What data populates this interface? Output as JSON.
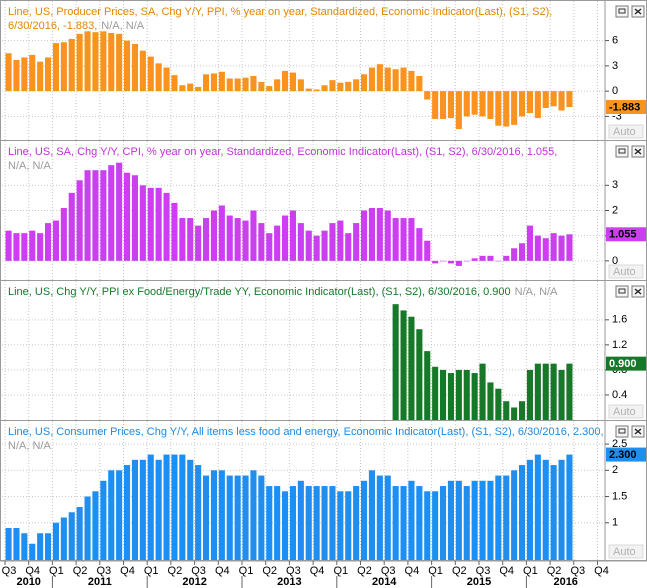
{
  "chart_data": [
    {
      "type": "bar",
      "color": "#f7931e",
      "title_color": "#e08600",
      "grid": true,
      "title": [
        "Line, US, Producer Prices, SA, Chg Y/Y, PPI, % year on year, Standardized, Economic Indicator(Last), (S1, S2),",
        "6/30/2016, -1.883,"
      ],
      "status": "N/A, N/A",
      "auto": "Auto",
      "ylim": [
        -5.8,
        10.7
      ],
      "yticks": [
        6,
        3,
        0,
        -3
      ],
      "values": [
        4.5,
        3.7,
        4.0,
        4.3,
        3.5,
        4.0,
        5.7,
        5.8,
        6.2,
        6.8,
        7.1,
        7.0,
        7.1,
        6.9,
        6.8,
        6.0,
        5.6,
        4.8,
        4.1,
        3.3,
        2.8,
        1.9,
        0.7,
        0.9,
        0.5,
        2.0,
        2.1,
        2.3,
        1.5,
        1.5,
        1.6,
        1.8,
        1.1,
        0.6,
        1.4,
        2.4,
        2.2,
        1.4,
        0.3,
        0.2,
        0.7,
        1.3,
        1.0,
        1.1,
        1.4,
        2.0,
        2.8,
        3.2,
        2.8,
        2.6,
        2.8,
        2.4,
        1.8,
        -1.0,
        -3.3,
        -3.3,
        -3.2,
        -4.5,
        -3.0,
        -2.8,
        -3.0,
        -3.3,
        -4.1,
        -4.2,
        -4.0,
        -3.0,
        -2.6,
        -3.2,
        -2.0,
        -1.8,
        -2.3,
        -1.883
      ]
    },
    {
      "type": "bar",
      "color": "#cc3ff0",
      "title_color": "#c030d8",
      "grid": true,
      "title": [
        "Line, US, SA, Chg Y/Y, CPI, % year on year, Standardized, Economic Indicator(Last), (S1, S2), 6/30/2016, 1.055,"
      ],
      "status": "N/A, N/A",
      "auto": "Auto",
      "ylim": [
        -0.76,
        4.76
      ],
      "yticks": [
        3,
        2,
        1,
        0
      ],
      "values": [
        1.2,
        1.1,
        1.1,
        1.2,
        1.1,
        1.5,
        1.6,
        2.1,
        2.7,
        3.2,
        3.6,
        3.6,
        3.6,
        3.8,
        3.9,
        3.5,
        3.4,
        3.0,
        2.9,
        2.9,
        2.7,
        2.3,
        1.7,
        1.7,
        1.4,
        1.7,
        2.0,
        2.2,
        1.8,
        1.7,
        1.6,
        2.0,
        1.5,
        1.1,
        1.4,
        1.8,
        2.0,
        1.5,
        1.2,
        1.0,
        1.2,
        1.5,
        1.6,
        1.1,
        1.5,
        2.0,
        2.1,
        2.1,
        2.0,
        1.7,
        1.7,
        1.7,
        1.3,
        0.8,
        -0.1,
        0.0,
        -0.1,
        -0.2,
        0.0,
        0.1,
        0.2,
        0.2,
        0.0,
        0.2,
        0.5,
        0.7,
        1.4,
        1.0,
        0.9,
        1.1,
        1.0,
        1.055
      ]
    },
    {
      "type": "bar",
      "color": "#17782a",
      "title_color": "#17782a",
      "grid": true,
      "title": [
        "Line, US, Chg Y/Y, PPI ex Food/Energy/Trade YY, Economic Indicator(Last), (S1, S2), 6/30/2016, 0.900"
      ],
      "status": "N/A, N/A",
      "auto": "Auto",
      "ylim": [
        0,
        2.22
      ],
      "yticks": [
        1.6,
        1.2,
        0.8,
        0.4
      ],
      "values": [
        null,
        null,
        null,
        null,
        null,
        null,
        null,
        null,
        null,
        null,
        null,
        null,
        null,
        null,
        null,
        null,
        null,
        null,
        null,
        null,
        null,
        null,
        null,
        null,
        null,
        null,
        null,
        null,
        null,
        null,
        null,
        null,
        null,
        null,
        null,
        null,
        null,
        null,
        null,
        null,
        null,
        null,
        null,
        null,
        null,
        null,
        null,
        null,
        null,
        1.85,
        1.75,
        1.65,
        1.45,
        1.1,
        0.85,
        0.8,
        0.75,
        0.8,
        0.8,
        0.75,
        0.9,
        0.6,
        0.5,
        0.3,
        0.2,
        0.3,
        0.8,
        0.9,
        0.9,
        0.9,
        0.8,
        0.9
      ],
      "value_labels": [
        null,
        null,
        null,
        null,
        null,
        null,
        null,
        null,
        null,
        null,
        null,
        null,
        null,
        null,
        null,
        null,
        null,
        null,
        null,
        null,
        null,
        null,
        null,
        null,
        null,
        null,
        null,
        null,
        null,
        null,
        null,
        null,
        null,
        null,
        null,
        null,
        null,
        null,
        null,
        null,
        null,
        null,
        null,
        null,
        null,
        null,
        null,
        null,
        null,
        null,
        null,
        null,
        null,
        null,
        null,
        null,
        null,
        null,
        null,
        null,
        null,
        null,
        null,
        null,
        null,
        null,
        null,
        null,
        null,
        null,
        null,
        "0.900"
      ]
    },
    {
      "type": "bar",
      "color": "#1e8ff0",
      "title_color": "#1f8ae0",
      "grid": true,
      "title": [
        "Line, US, Consumer Prices, Chg Y/Y, All items less food and energy, Economic Indicator(Last), (S1, S2), 6/30/2016, 2.300,"
      ],
      "status": "N/A, N/A",
      "auto": "Auto",
      "ylim": [
        0.29,
        2.94
      ],
      "yticks": [
        2.5,
        2,
        1.5,
        1
      ],
      "values": [
        0.9,
        0.9,
        0.8,
        0.6,
        0.8,
        0.8,
        1.0,
        1.1,
        1.2,
        1.3,
        1.5,
        1.6,
        1.8,
        2.0,
        2.0,
        2.1,
        2.2,
        2.2,
        2.3,
        2.2,
        2.3,
        2.3,
        2.3,
        2.2,
        2.1,
        1.9,
        2.0,
        2.0,
        1.9,
        1.9,
        1.9,
        2.0,
        1.9,
        1.7,
        1.7,
        1.6,
        1.7,
        1.8,
        1.7,
        1.7,
        1.7,
        1.7,
        1.6,
        1.6,
        1.7,
        1.8,
        2.0,
        1.9,
        1.9,
        1.7,
        1.7,
        1.8,
        1.7,
        1.6,
        1.6,
        1.7,
        1.8,
        1.8,
        1.7,
        1.8,
        1.8,
        1.8,
        1.9,
        1.9,
        2.0,
        2.1,
        2.2,
        2.3,
        2.2,
        2.1,
        2.2,
        2.3
      ],
      "value_labels": [
        null,
        null,
        null,
        null,
        null,
        null,
        null,
        null,
        null,
        null,
        null,
        null,
        null,
        null,
        null,
        null,
        null,
        null,
        null,
        null,
        null,
        null,
        null,
        null,
        null,
        null,
        null,
        null,
        null,
        null,
        null,
        null,
        null,
        null,
        null,
        null,
        null,
        null,
        null,
        null,
        null,
        null,
        null,
        null,
        null,
        null,
        null,
        null,
        null,
        null,
        null,
        null,
        null,
        null,
        null,
        null,
        null,
        null,
        null,
        null,
        null,
        null,
        null,
        null,
        null,
        null,
        null,
        null,
        null,
        null,
        null,
        "2.300"
      ]
    }
  ],
  "x_axis": {
    "quarters": [
      "Q3",
      "Q4",
      "Q1",
      "Q2",
      "Q3",
      "Q4",
      "Q1",
      "Q2",
      "Q3",
      "Q4",
      "Q1",
      "Q2",
      "Q3",
      "Q4",
      "Q1",
      "Q2",
      "Q3",
      "Q4",
      "Q1",
      "Q2",
      "Q3",
      "Q4",
      "Q1",
      "Q2",
      "Q3",
      "Q4"
    ],
    "years": [
      "2010",
      "2011",
      "2012",
      "2013",
      "2014",
      "2015",
      "2016"
    ]
  }
}
